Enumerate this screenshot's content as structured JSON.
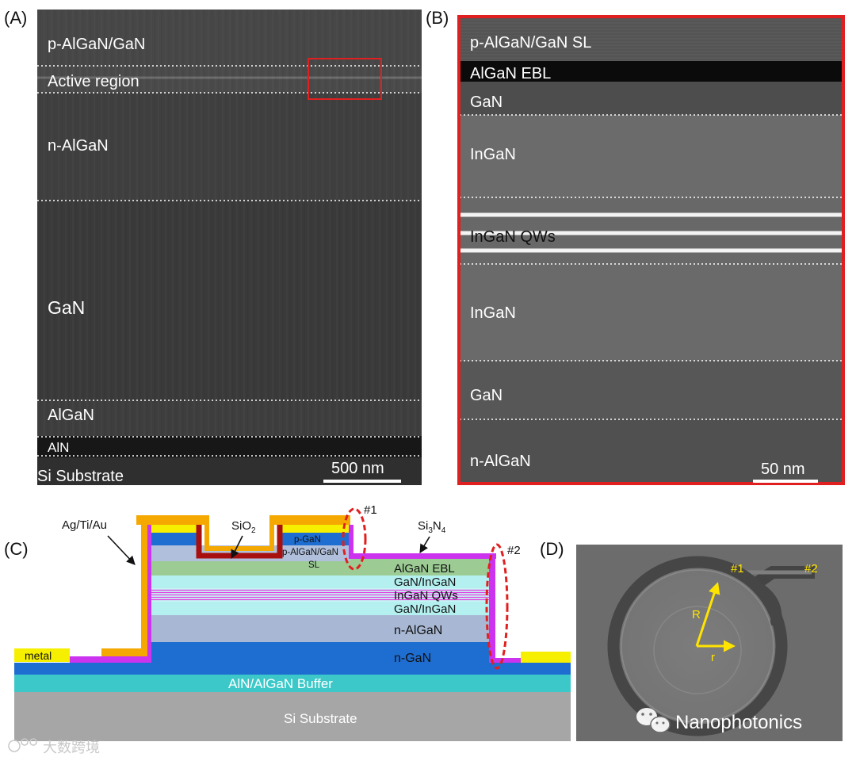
{
  "panel_a": {
    "label": "(A)",
    "layers": {
      "p_algan_gan": "p-AlGaN/GaN",
      "active_region": "Active region",
      "n_algan": "n-AlGaN",
      "gan": "GaN",
      "algan": "AlGaN",
      "aln": "AlN",
      "si_substrate": "Si Substrate"
    },
    "scale_bar": "500 nm"
  },
  "panel_b": {
    "label": "(B)",
    "layers": {
      "p_algan_gan_sl": "p-AlGaN/GaN SL",
      "algan_ebl": "AlGaN EBL",
      "gan_top": "GaN",
      "ingan_top": "InGaN",
      "ingan_qws": "InGaN QWs",
      "ingan_bottom": "InGaN",
      "gan_bottom": "GaN",
      "n_algan": "n-AlGaN"
    },
    "scale_bar": "50 nm"
  },
  "panel_c": {
    "label": "(C)",
    "callouts": {
      "contact": "Ag/Ti/Au",
      "oxide_base": "SiO",
      "oxide_sub": "2",
      "nitride_si": "Si",
      "nitride_3": "3",
      "nitride_n": "N",
      "nitride_4": "4"
    },
    "markers": {
      "m1": "#1",
      "m2": "#2"
    },
    "layers": {
      "p_gan": "p-GaN",
      "p_algan_gan": "p-AlGaN/GaN",
      "sl": "SL",
      "algan_ebl": "AlGaN EBL",
      "gan_ingan_top": "GaN/InGaN",
      "ingan_qws": "InGaN QWs",
      "gan_ingan_bottom": "GaN/InGaN",
      "n_algan": "n-AlGaN",
      "n_gan": "n-GaN",
      "buffer": "AlN/AlGaN Buffer",
      "si_substrate": "Si Substrate",
      "metal": "metal"
    }
  },
  "panel_d": {
    "label": "(D)",
    "markers": {
      "m1": "#1",
      "m2": "#2"
    },
    "radius_outer": "R",
    "radius_inner": "r"
  },
  "watermarks": {
    "journal": "Nanophotonics",
    "source": "大数跨境"
  },
  "colors": {
    "highlight_red": "#e02020",
    "contact_orange": "#f5a800",
    "metal_yellow": "#f6f000",
    "nitride_magenta": "#cc33ee",
    "oxide_darkred": "#a81010",
    "buffer_teal": "#3cc8c8",
    "gan_blue": "#1e6ed2",
    "sem_marker_yellow": "#ffe400"
  }
}
